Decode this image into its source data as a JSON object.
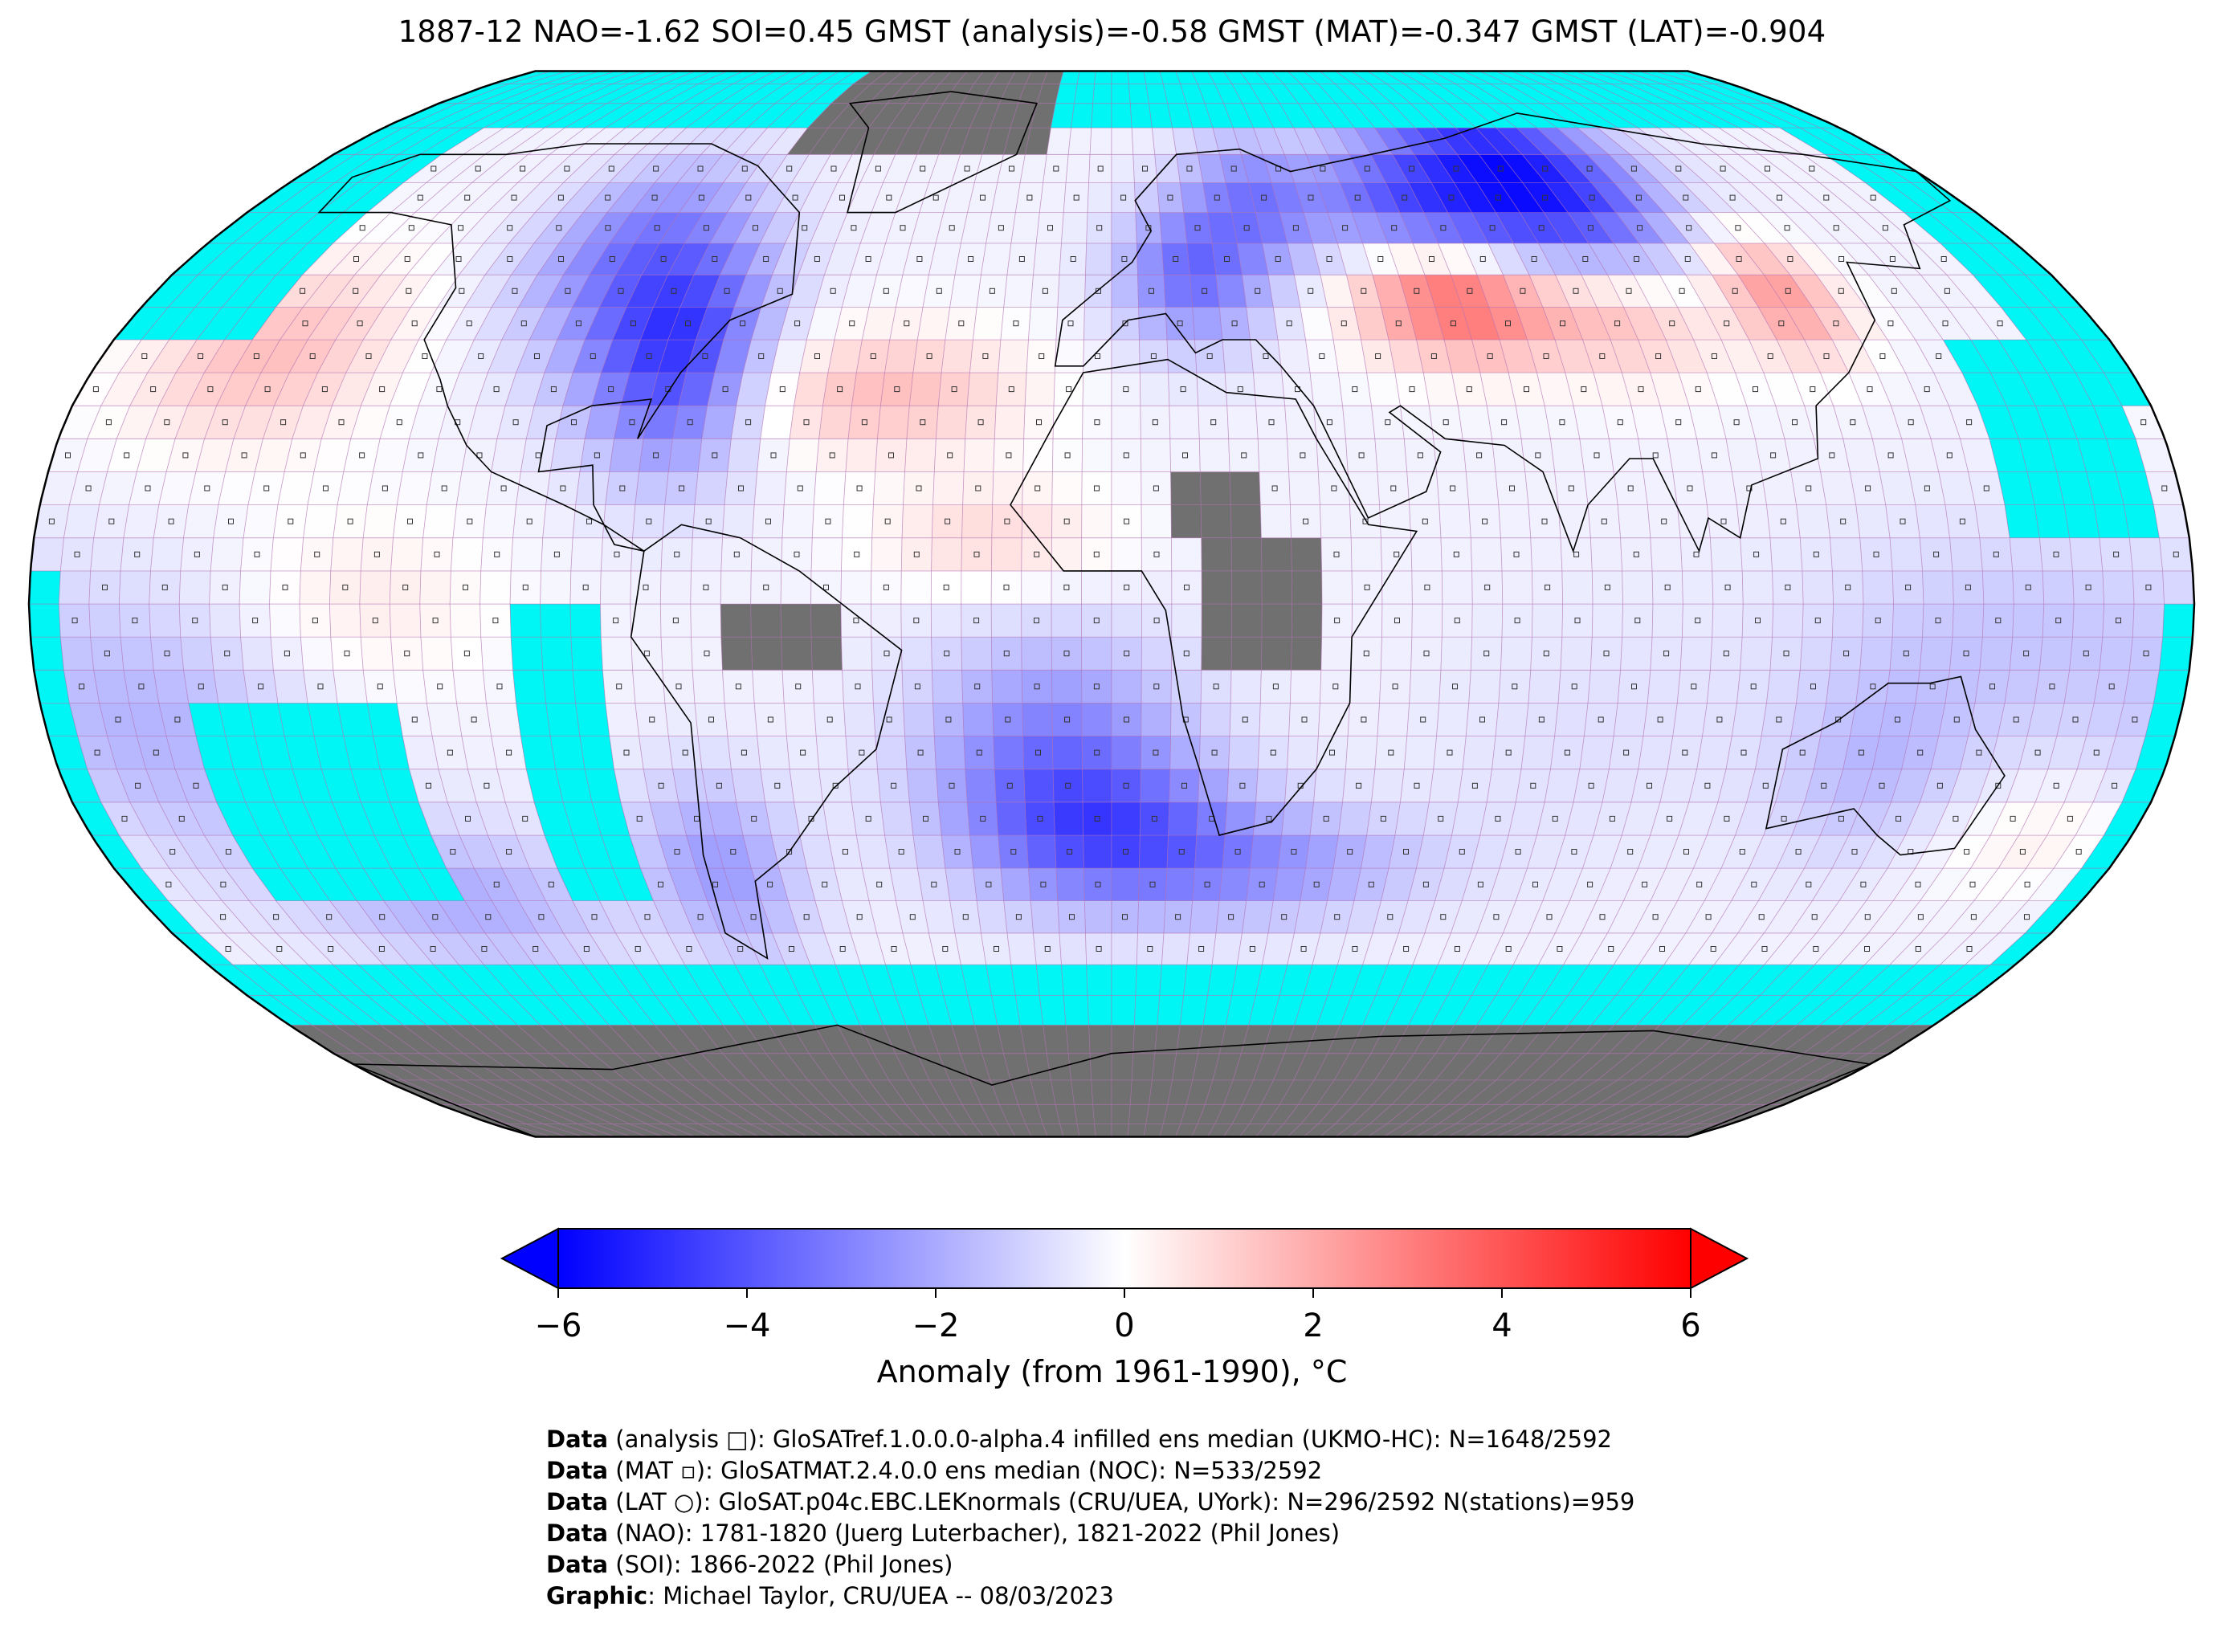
{
  "title": "1887-12 NAO=-1.62 SOI=0.45 GMST (analysis)=-0.58 GMST (MAT)=-0.347 GMST (LAT)=-0.904",
  "colors": {
    "missing": "#00f5f5",
    "land_nodata": "#707070",
    "neg_max": "#0000ff",
    "pos_max": "#ff0000",
    "gridline": "#b070b0",
    "outline": "#000000"
  },
  "colorbar": {
    "label": "Anomaly (from 1961-1990), °C",
    "min": -6,
    "max": 6,
    "ticks": [
      "−6",
      "−4",
      "−2",
      "0",
      "2",
      "4",
      "6"
    ],
    "extend": "both"
  },
  "credits": [
    {
      "bold": "Data",
      "text": " (analysis □): GloSATref.1.0.0.0-alpha.4 infilled ens median (UKMO-HC): N=1648/2592"
    },
    {
      "bold": "Data",
      "text": " (MAT ▫): GloSATMAT.2.4.0.0 ens median (NOC): N=533/2592"
    },
    {
      "bold": "Data",
      "text": " (LAT ○): GloSAT.p04c.EBC.LEKnormals (CRU/UEA, UYork): N=296/2592 N(stations)=959"
    },
    {
      "bold": "Data",
      "text": " (NAO): 1781-1820 (Juerg Luterbacher), 1821-2022 (Phil Jones)"
    },
    {
      "bold": "Data",
      "text": " (SOI): 1866-2022 (Phil Jones)"
    },
    {
      "bold": "Graphic",
      "text": ": Michael Taylor, CRU/UEA -- 08/03/2023"
    }
  ],
  "chart_data": {
    "type": "heatmap",
    "projection": "Robinson",
    "grid": "5x5 degree",
    "value_units": "°C",
    "color_range": [
      -6,
      6
    ],
    "anomaly_regions": [
      {
        "region": "Siberia / northern Russia",
        "value": -5.5
      },
      {
        "region": "Scandinavia / northern Europe",
        "value": -2.5
      },
      {
        "region": "Central Europe",
        "value": -3.0
      },
      {
        "region": "Eastern North America",
        "value": -3.0
      },
      {
        "region": "Central Asia (Kazakhstan)",
        "value": 4.5
      },
      {
        "region": "Northeast China / Manchuria",
        "value": 2.5
      },
      {
        "region": "North Atlantic subtropics",
        "value": 1.5
      },
      {
        "region": "Northeast Pacific",
        "value": 1.5
      },
      {
        "region": "Tropical East Pacific",
        "value": 1.0
      },
      {
        "region": "South Atlantic / Southern Ocean",
        "value": -2.5
      },
      {
        "region": "Tropical Pacific",
        "value": -0.5
      },
      {
        "region": "Indian Ocean",
        "value": -0.5
      },
      {
        "region": "Australia",
        "value": -1.0
      },
      {
        "region": "Tasman Sea",
        "value": 1.0
      }
    ]
  }
}
